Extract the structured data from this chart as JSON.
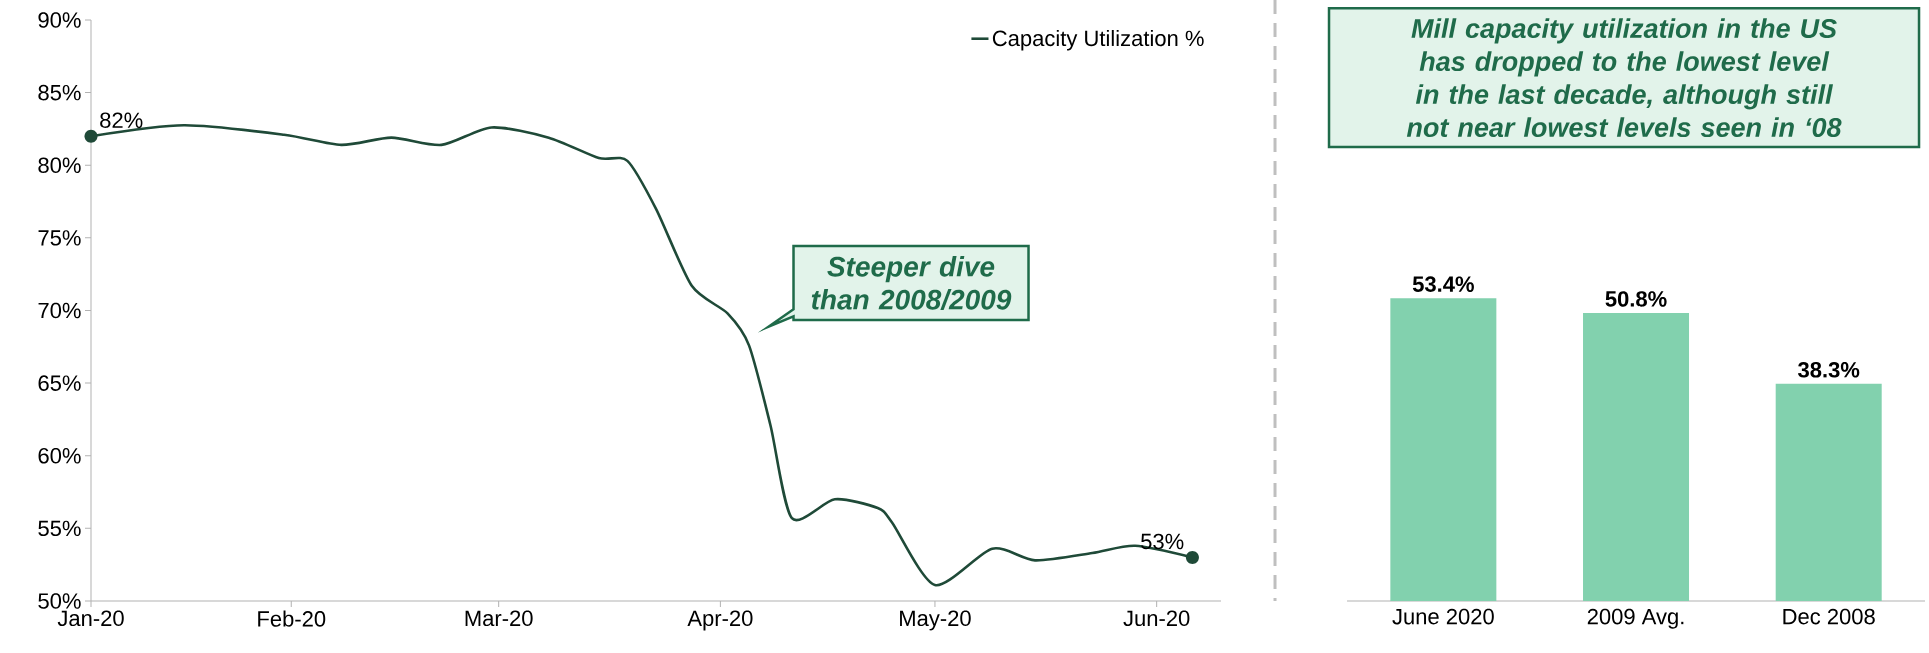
{
  "chart_data": [
    {
      "type": "line",
      "x": [
        "2020-01-04",
        "2020-01-17",
        "2020-01-31",
        "2020-02-08",
        "2020-02-15",
        "2020-02-22",
        "2020-02-29",
        "2020-03-08",
        "2020-03-15",
        "2020-03-19",
        "2020-03-23",
        "2020-03-28",
        "2020-04-02",
        "2020-04-05",
        "2020-04-08",
        "2020-04-11",
        "2020-04-17",
        "2020-04-23",
        "2020-04-25",
        "2020-05-01",
        "2020-05-09",
        "2020-05-15",
        "2020-05-23",
        "2020-05-29",
        "2020-06-06"
      ],
      "series": [
        {
          "name": "Capacity Utilization %",
          "color": "#1f4a38",
          "values": [
            82,
            82.75,
            82.1,
            81.4,
            81.9,
            81.4,
            82.6,
            81.9,
            80.5,
            80.3,
            77.0,
            71.7,
            69.8,
            67.6,
            62.1,
            55.7,
            57.0,
            56.4,
            55.4,
            51.1,
            53.6,
            52.8,
            53.3,
            53.8,
            53
          ]
        }
      ],
      "xlim": [
        "2020-01-04",
        "2020-06-10"
      ],
      "xticks": [
        {
          "value": "2020-01-04",
          "label": "Jan-20"
        },
        {
          "value": "2020-02-01",
          "label": "Feb-20"
        },
        {
          "value": "2020-03-01",
          "label": "Mar-20"
        },
        {
          "value": "2020-04-01",
          "label": "Apr-20"
        },
        {
          "value": "2020-05-01",
          "label": "May-20"
        },
        {
          "value": "2020-06-01",
          "label": "Jun-20"
        }
      ],
      "ylim": [
        50,
        90
      ],
      "yticks": [
        {
          "value": 50,
          "label": "50%"
        },
        {
          "value": 55,
          "label": "55%"
        },
        {
          "value": 60,
          "label": "60%"
        },
        {
          "value": 65,
          "label": "65%"
        },
        {
          "value": 70,
          "label": "70%"
        },
        {
          "value": 75,
          "label": "75%"
        },
        {
          "value": 80,
          "label": "80%"
        },
        {
          "value": 85,
          "label": "85%"
        },
        {
          "value": 90,
          "label": "90%"
        }
      ],
      "legend": "top right",
      "annotations": [
        {
          "text": "82%",
          "x": "2020-01-04",
          "y": 82
        },
        {
          "text": "53%",
          "x": "2020-06-06",
          "y": 53
        },
        "*Steeper dive than 2008/2009*"
      ]
    },
    {
      "type": "bar",
      "title": "*Mill capacity utilization in the US has dropped to the lowest level in the last decade, although still not near lowest levels seen in ‘08*",
      "categories": [
        "June 2020",
        "2009 Avg.",
        "Dec 2008"
      ],
      "values": [
        53.4,
        50.8,
        38.3
      ],
      "value_labels": [
        "53.4%",
        "50.8%",
        "38.3%"
      ],
      "color": "#82d1ae"
    }
  ]
}
